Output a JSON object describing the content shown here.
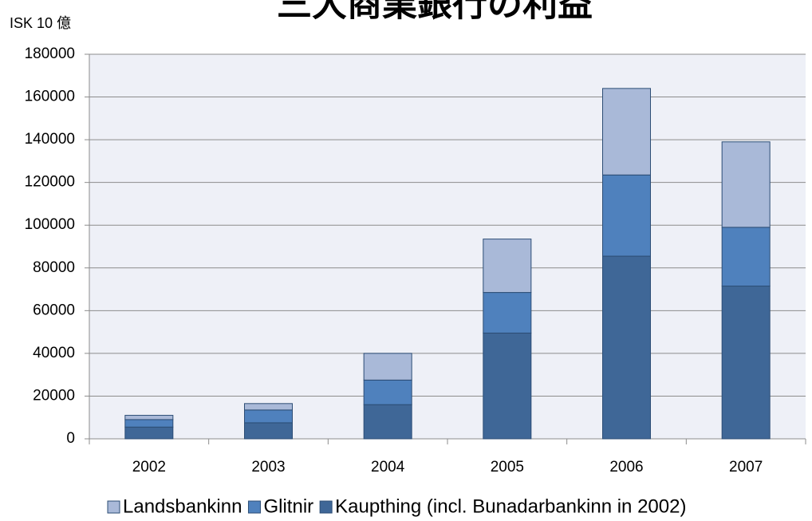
{
  "chart_data": {
    "type": "stacked_bar",
    "title": "三大商業銀行の利益",
    "y_label": "ISK 10 億",
    "categories": [
      "2002",
      "2003",
      "2004",
      "2005",
      "2006",
      "2007"
    ],
    "series": [
      {
        "name": "Kaupthing (incl. Bunadarbankinn in 2002)",
        "color": "#3f6797",
        "values": [
          5500,
          7500,
          16000,
          49500,
          85500,
          71500
        ]
      },
      {
        "name": "Glitnir",
        "color": "#4f81bd",
        "values": [
          3500,
          6000,
          11500,
          19000,
          38000,
          27500
        ]
      },
      {
        "name": "Landsbankinn",
        "color": "#a9b9d8",
        "values": [
          2000,
          3000,
          12500,
          25000,
          40500,
          40000
        ]
      }
    ],
    "ylim": [
      0,
      180000
    ],
    "yticks": [
      0,
      20000,
      40000,
      60000,
      80000,
      100000,
      120000,
      140000,
      160000,
      180000
    ],
    "grid": true,
    "legend": "bottom"
  }
}
